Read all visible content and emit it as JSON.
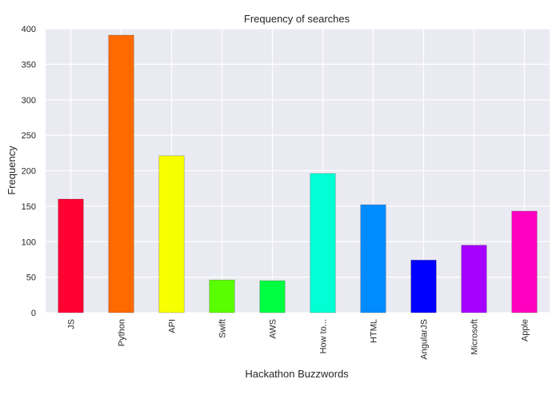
{
  "chart_data": {
    "type": "bar",
    "title": "Frequency of searches",
    "xlabel": "Hackathon Buzzwords",
    "ylabel": "Frequency",
    "categories": [
      "JS",
      "Python",
      "API",
      "Swift",
      "AWS",
      "How to...",
      "HTML",
      "AngularJS",
      "Microsoft",
      "Apple"
    ],
    "values": [
      160,
      391,
      221,
      46,
      45,
      196,
      152,
      74,
      95,
      143
    ],
    "colors": [
      "#ff0033",
      "#ff6a00",
      "#f8ff00",
      "#59ff00",
      "#00ff40",
      "#00ffd5",
      "#008cff",
      "#0000ff",
      "#a600ff",
      "#ff00c0"
    ],
    "ylim": [
      0,
      400
    ],
    "yticks": [
      0,
      50,
      100,
      150,
      200,
      250,
      300,
      350,
      400
    ],
    "grid": true,
    "background": "#eaeaf2",
    "legend": "none"
  }
}
